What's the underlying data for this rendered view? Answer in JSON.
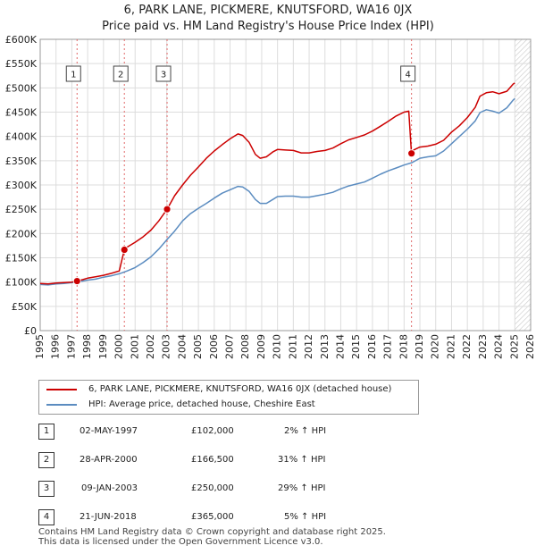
{
  "chart_data": {
    "type": "line",
    "title": "6, PARK LANE, PICKMERE, KNUTSFORD, WA16 0JX",
    "subtitle": "Price paid vs. HM Land Registry's House Price Index (HPI)",
    "xlabel": "",
    "ylabel": "",
    "xlim": [
      1995,
      2026
    ],
    "ylim": [
      0,
      600000
    ],
    "y_ticks": [
      0,
      50000,
      100000,
      150000,
      200000,
      250000,
      300000,
      350000,
      400000,
      450000,
      500000,
      550000,
      600000
    ],
    "y_tick_labels": [
      "£0",
      "£50K",
      "£100K",
      "£150K",
      "£200K",
      "£250K",
      "£300K",
      "£350K",
      "£400K",
      "£450K",
      "£500K",
      "£550K",
      "£600K"
    ],
    "x_ticks": [
      1995,
      1996,
      1997,
      1998,
      1999,
      2000,
      2001,
      2002,
      2003,
      2004,
      2005,
      2006,
      2007,
      2008,
      2009,
      2010,
      2011,
      2012,
      2013,
      2014,
      2015,
      2016,
      2017,
      2018,
      2019,
      2020,
      2021,
      2022,
      2023,
      2024,
      2025,
      2026
    ],
    "x_tick_labels": [
      "1995",
      "1996",
      "1997",
      "1998",
      "1999",
      "2000",
      "2001",
      "2002",
      "2003",
      "2004",
      "2005",
      "2006",
      "2007",
      "2008",
      "2009",
      "2010",
      "2011",
      "2012",
      "2013",
      "2014",
      "2015",
      "2016",
      "2017",
      "2018",
      "2019",
      "2020",
      "2021",
      "2022",
      "2023",
      "2024",
      "2025",
      "2026"
    ],
    "grid": true,
    "future_hatch_from": 2025.0,
    "series": [
      {
        "name": "6, PARK LANE, PICKMERE, KNUTSFORD, WA16 0JX (detached house)",
        "color": "#cc0000",
        "x": [
          1995.0,
          1995.5,
          1996.0,
          1996.5,
          1997.0,
          1997.33,
          1997.7,
          1998.0,
          1998.5,
          1999.0,
          1999.5,
          2000.0,
          2000.32,
          2000.5,
          2001.0,
          2001.5,
          2002.0,
          2002.5,
          2003.02,
          2003.5,
          2004.0,
          2004.5,
          2005.0,
          2005.5,
          2006.0,
          2006.5,
          2007.0,
          2007.5,
          2007.8,
          2008.2,
          2008.6,
          2008.9,
          2009.3,
          2009.7,
          2010.0,
          2010.5,
          2011.0,
          2011.5,
          2012.0,
          2012.5,
          2013.0,
          2013.5,
          2014.0,
          2014.5,
          2015.0,
          2015.5,
          2016.0,
          2016.5,
          2017.0,
          2017.5,
          2018.0,
          2018.3,
          2018.47,
          2018.6,
          2019.0,
          2019.5,
          2020.0,
          2020.5,
          2021.0,
          2021.5,
          2022.0,
          2022.5,
          2022.8,
          2023.2,
          2023.6,
          2024.0,
          2024.5,
          2024.9,
          2025.0
        ],
        "values": [
          97000,
          96000,
          98000,
          99000,
          100000,
          102000,
          105000,
          108000,
          111000,
          114000,
          118000,
          123000,
          166500,
          172000,
          182000,
          193000,
          207000,
          226000,
          250000,
          278000,
          300000,
          320000,
          337000,
          355000,
          370000,
          383000,
          395000,
          405000,
          402000,
          388000,
          363000,
          355000,
          358000,
          368000,
          373000,
          372000,
          371000,
          366000,
          366000,
          369000,
          371000,
          376000,
          385000,
          393000,
          398000,
          403000,
          411000,
          421000,
          431000,
          442000,
          450000,
          452000,
          365000,
          372000,
          378000,
          380000,
          384000,
          392000,
          409000,
          422000,
          439000,
          460000,
          483000,
          490000,
          492000,
          488000,
          493000,
          508000,
          510000
        ]
      },
      {
        "name": "HPI: Average price, detached house, Cheshire East",
        "color": "#5b8cc0",
        "x": [
          1995.0,
          1995.5,
          1996.0,
          1996.5,
          1997.0,
          1997.5,
          1998.0,
          1998.5,
          1999.0,
          1999.5,
          2000.0,
          2000.5,
          2001.0,
          2001.5,
          2002.0,
          2002.5,
          2003.0,
          2003.5,
          2004.0,
          2004.5,
          2005.0,
          2005.5,
          2006.0,
          2006.5,
          2007.0,
          2007.5,
          2007.8,
          2008.2,
          2008.6,
          2008.9,
          2009.3,
          2009.7,
          2010.0,
          2010.5,
          2011.0,
          2011.5,
          2012.0,
          2012.5,
          2013.0,
          2013.5,
          2014.0,
          2014.5,
          2015.0,
          2015.5,
          2016.0,
          2016.5,
          2017.0,
          2017.5,
          2018.0,
          2018.5,
          2019.0,
          2019.5,
          2020.0,
          2020.5,
          2021.0,
          2021.5,
          2022.0,
          2022.5,
          2022.8,
          2023.2,
          2023.6,
          2024.0,
          2024.5,
          2024.9,
          2025.0
        ],
        "values": [
          95000,
          94000,
          96000,
          97000,
          99000,
          101000,
          104000,
          106000,
          110000,
          113000,
          117000,
          123000,
          130000,
          140000,
          152000,
          168000,
          187000,
          205000,
          226000,
          241000,
          252000,
          262000,
          273000,
          283000,
          290000,
          297000,
          296000,
          287000,
          270000,
          262000,
          262000,
          270000,
          276000,
          277000,
          277000,
          275000,
          275000,
          278000,
          281000,
          285000,
          292000,
          298000,
          302000,
          306000,
          314000,
          322000,
          329000,
          335000,
          341000,
          346000,
          355000,
          358000,
          360000,
          370000,
          385000,
          400000,
          415000,
          432000,
          449000,
          455000,
          452000,
          448000,
          459000,
          475000,
          478000
        ]
      }
    ],
    "transactions": [
      {
        "label": "1",
        "x": 1997.33,
        "value": 102000
      },
      {
        "label": "2",
        "x": 2000.32,
        "value": 166500
      },
      {
        "label": "3",
        "x": 2003.02,
        "value": 250000
      },
      {
        "label": "4",
        "x": 2018.47,
        "value": 365000
      }
    ]
  },
  "legend": {
    "property": "6, PARK LANE, PICKMERE, KNUTSFORD, WA16 0JX (detached house)",
    "hpi": "HPI: Average price, detached house, Cheshire East"
  },
  "table": [
    {
      "num": "1",
      "date": "02-MAY-1997",
      "price": "£102,000",
      "hpi": "2% ↑ HPI"
    },
    {
      "num": "2",
      "date": "28-APR-2000",
      "price": "£166,500",
      "hpi": "31% ↑ HPI"
    },
    {
      "num": "3",
      "date": "09-JAN-2003",
      "price": "£250,000",
      "hpi": "29% ↑ HPI"
    },
    {
      "num": "4",
      "date": "21-JUN-2018",
      "price": "£365,000",
      "hpi": "5% ↑ HPI"
    }
  ],
  "footer": {
    "line1": "Contains HM Land Registry data © Crown copyright and database right 2025.",
    "line2": "This data is licensed under the Open Government Licence v3.0."
  }
}
